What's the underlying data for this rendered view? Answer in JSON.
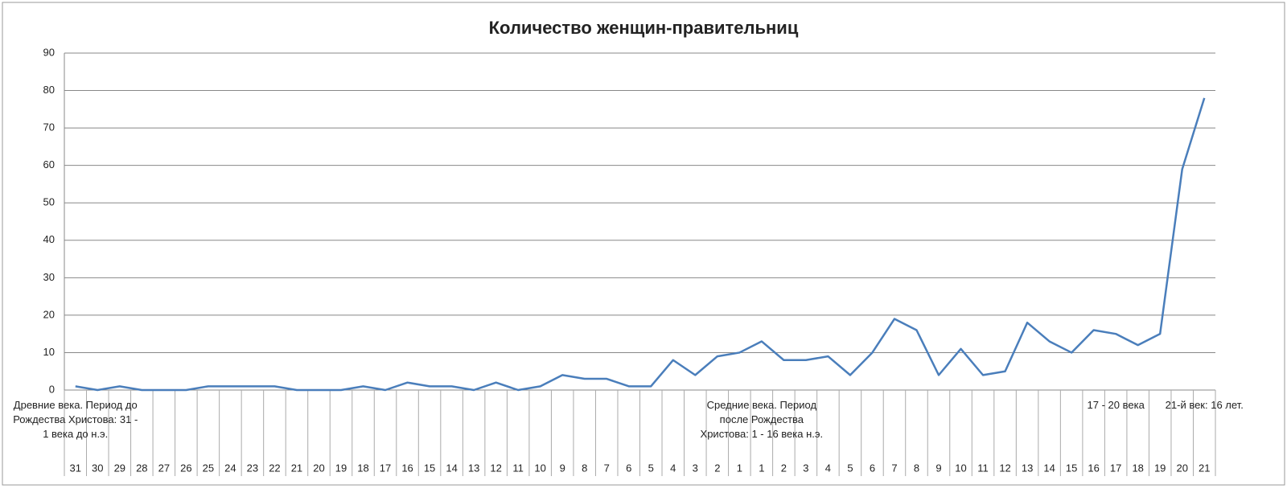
{
  "chart_data": {
    "type": "line",
    "title": "Количество женщин-правительниц",
    "color": "#4a7ebb",
    "grid": true,
    "ylim": [
      0,
      90
    ],
    "yticks": [
      0,
      10,
      20,
      30,
      40,
      50,
      60,
      70,
      80,
      90
    ],
    "category_groups": [
      {
        "label": "Древние века. Период до Рождества Христова: 31 - 1 века до н.э.",
        "categories": [
          "31",
          "30",
          "29",
          "28",
          "27",
          "26",
          "25",
          "24",
          "23",
          "22",
          "21",
          "20",
          "19",
          "18",
          "17",
          "16",
          "15",
          "14",
          "13",
          "12",
          "11",
          "10",
          "9",
          "8",
          "7",
          "6",
          "5",
          "4",
          "3",
          "2",
          "1"
        ]
      },
      {
        "label": "Средние века. Период после Рождества Христова: 1 - 16 века н.э.",
        "categories": [
          "1",
          "2",
          "3",
          "4",
          "5",
          "6",
          "7",
          "8",
          "9",
          "10",
          "11",
          "12",
          "13",
          "14",
          "15",
          "16"
        ]
      },
      {
        "label": "17 - 20 века",
        "categories": [
          "17",
          "18",
          "19",
          "20"
        ]
      },
      {
        "label": "21-й век: 16 лет.",
        "categories": [
          "21"
        ]
      }
    ],
    "values": [
      1,
      0,
      1,
      0,
      0,
      0,
      1,
      1,
      1,
      1,
      0,
      0,
      0,
      1,
      0,
      2,
      1,
      1,
      0,
      2,
      0,
      1,
      4,
      3,
      3,
      1,
      1,
      8,
      4,
      9,
      10,
      13,
      8,
      8,
      9,
      4,
      10,
      19,
      16,
      4,
      11,
      4,
      5,
      18,
      13,
      10,
      16,
      15,
      12,
      15,
      59,
      78
    ]
  }
}
